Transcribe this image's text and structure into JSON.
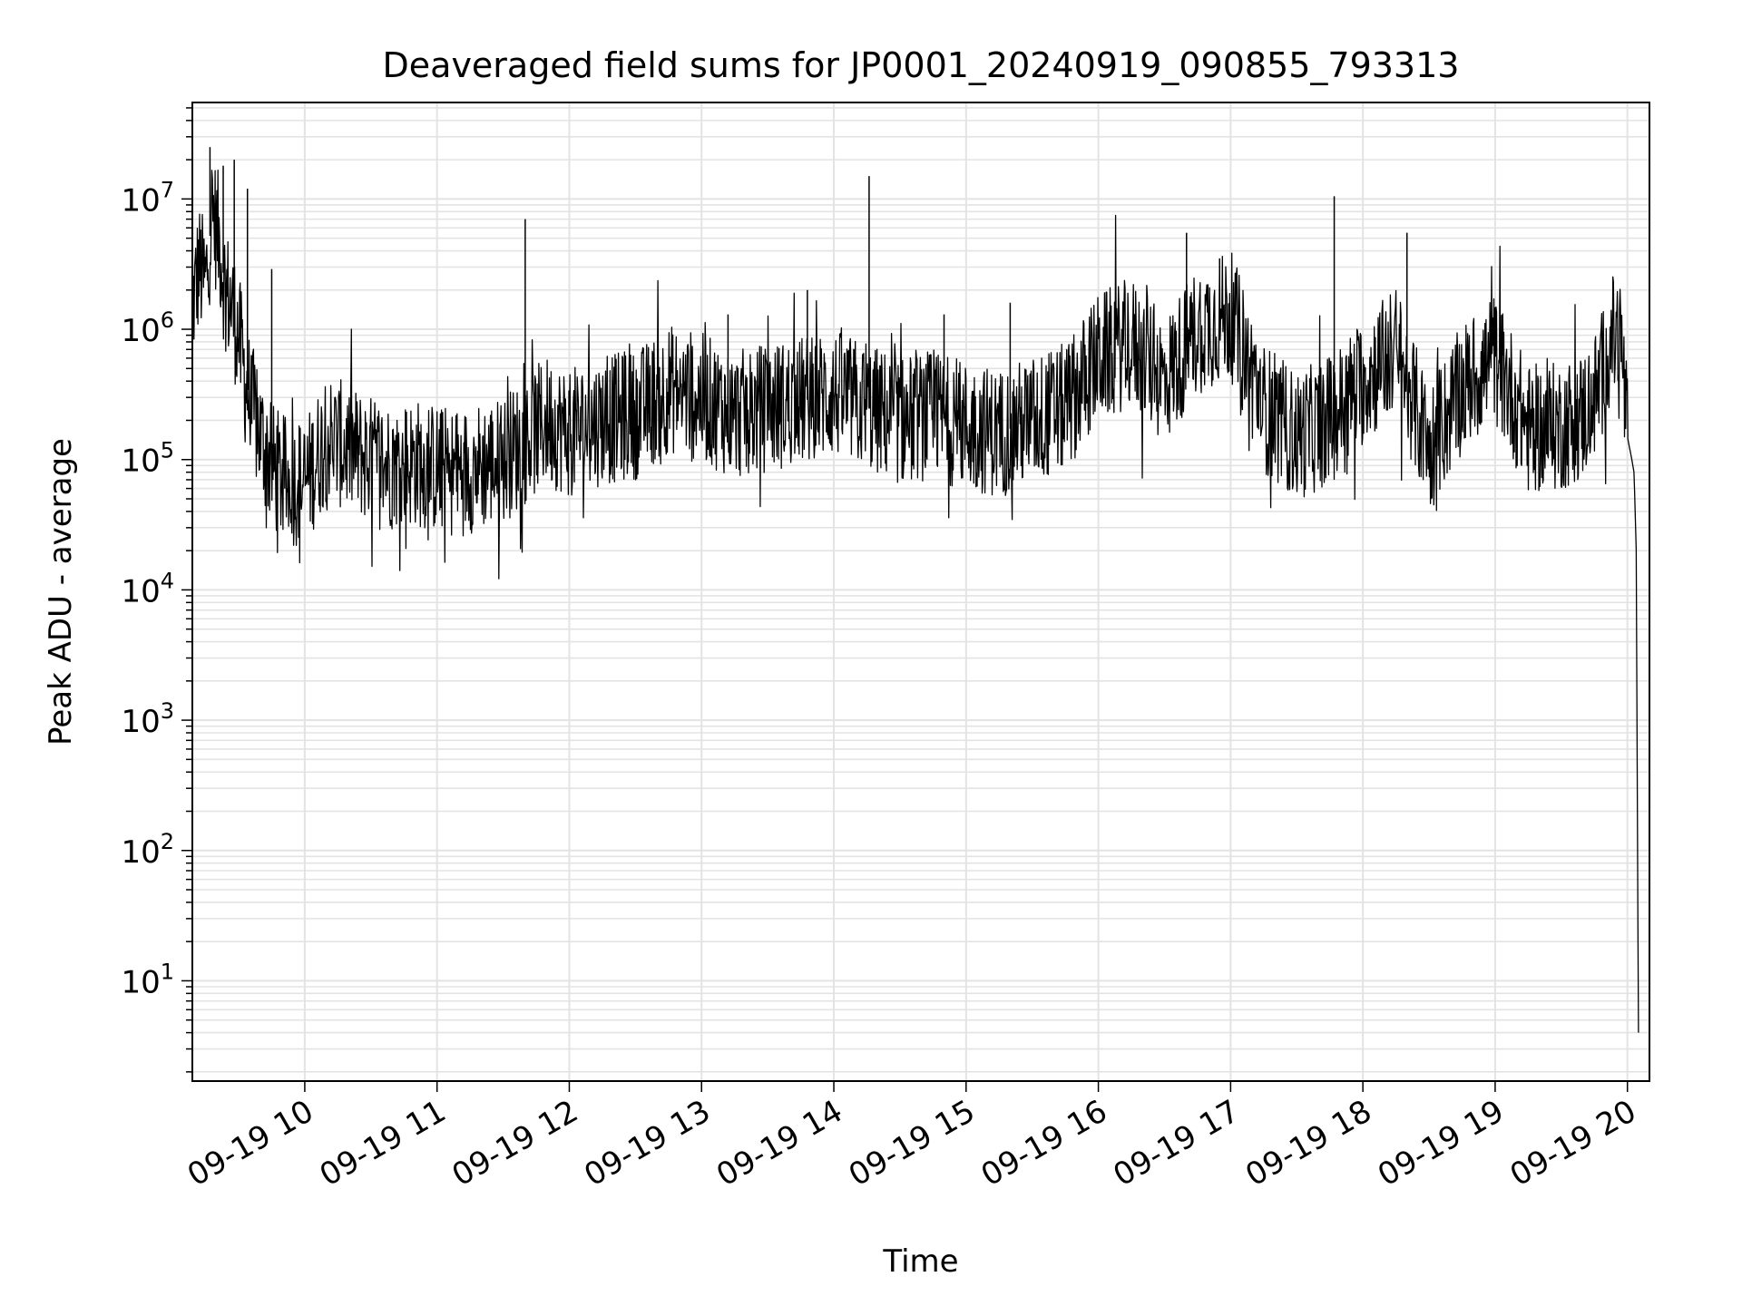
{
  "chart_data": {
    "type": "line",
    "title": "Deaveraged field sums for JP0001_20240919_090855_793313",
    "xlabel": "Time",
    "ylabel": "Peak ADU - average",
    "yscale": "log",
    "ylim": [
      1.7,
      55000000
    ],
    "xlim": [
      "09-19 09:09",
      "09-19 20:10"
    ],
    "grid": "on",
    "x_ticks": [
      "09-19 10",
      "09-19 11",
      "09-19 12",
      "09-19 13",
      "09-19 14",
      "09-19 15",
      "09-19 16",
      "09-19 17",
      "09-19 18",
      "09-19 19",
      "09-19 20"
    ],
    "y_ticks": [
      {
        "base": "10",
        "exp": "1",
        "value": 10
      },
      {
        "base": "10",
        "exp": "2",
        "value": 100
      },
      {
        "base": "10",
        "exp": "3",
        "value": 1000
      },
      {
        "base": "10",
        "exp": "4",
        "value": 10000
      },
      {
        "base": "10",
        "exp": "5",
        "value": 100000
      },
      {
        "base": "10",
        "exp": "6",
        "value": 1000000
      },
      {
        "base": "10",
        "exp": "7",
        "value": 10000000
      }
    ],
    "series": [
      {
        "color": "#000000",
        "x": [
          "09-19 09:09",
          "09-19 09:12",
          "09-19 09:15",
          "09-19 09:18",
          "09-19 09:21",
          "09-19 09:24",
          "09-19 09:27",
          "09-19 09:30",
          "09-19 09:33",
          "09-19 09:36",
          "09-19 09:40",
          "09-19 09:45",
          "09-19 09:50",
          "09-19 10:00",
          "09-19 10:10",
          "09-19 10:20",
          "09-19 10:30",
          "09-19 10:40",
          "09-19 10:50",
          "09-19 11:00",
          "09-19 11:10",
          "09-19 11:20",
          "09-19 11:30",
          "09-19 11:40",
          "09-19 11:50",
          "09-19 12:00",
          "09-19 12:15",
          "09-19 12:30",
          "09-19 12:45",
          "09-19 13:00",
          "09-19 13:15",
          "09-19 13:30",
          "09-19 13:45",
          "09-19 14:00",
          "09-19 14:15",
          "09-19 14:30",
          "09-19 14:45",
          "09-19 15:00",
          "09-19 15:15",
          "09-19 15:30",
          "09-19 15:45",
          "09-19 16:00",
          "09-19 16:15",
          "09-19 16:30",
          "09-19 16:45",
          "09-19 17:00",
          "09-19 17:15",
          "09-19 17:30",
          "09-19 17:45",
          "09-19 18:00",
          "09-19 18:15",
          "09-19 18:30",
          "09-19 18:45",
          "09-19 19:00",
          "09-19 19:15",
          "09-19 19:30",
          "09-19 19:40",
          "09-19 19:47",
          "09-19 19:52",
          "09-19 19:57",
          "09-19 20:00",
          "09-19 20:02",
          "09-19 20:03",
          "09-19 20:04",
          "09-19 20:05"
        ],
        "y": [
          1500000,
          3000000,
          2200000,
          8000000,
          5000000,
          2000000,
          1500000,
          900000,
          400000,
          250000,
          150000,
          90000,
          70000,
          65000,
          150000,
          120000,
          100000,
          90000,
          95000,
          85000,
          80000,
          90000,
          100000,
          140000,
          200000,
          160000,
          200000,
          220000,
          350000,
          300000,
          220000,
          250000,
          280000,
          320000,
          250000,
          200000,
          220000,
          180000,
          160000,
          200000,
          250000,
          600000,
          800000,
          400000,
          1000000,
          1300000,
          250000,
          150000,
          200000,
          400000,
          700000,
          120000,
          350000,
          600000,
          170000,
          180000,
          220000,
          350000,
          800000,
          900000,
          150000,
          100000,
          80000,
          20000,
          4
        ]
      }
    ],
    "spikes": [
      {
        "x": "09-19 09:17",
        "y": 25000000
      },
      {
        "x": "09-19 09:23",
        "y": 18000000
      },
      {
        "x": "09-19 09:28",
        "y": 20000000
      },
      {
        "x": "09-19 09:34",
        "y": 12000000
      },
      {
        "x": "09-19 09:45",
        "y": 2900000
      },
      {
        "x": "09-19 11:40",
        "y": 7000000
      },
      {
        "x": "09-19 13:12",
        "y": 1300000
      },
      {
        "x": "09-19 13:48",
        "y": 2000000
      },
      {
        "x": "09-19 14:16",
        "y": 15000000
      },
      {
        "x": "09-19 14:50",
        "y": 1300000
      },
      {
        "x": "09-19 15:20",
        "y": 1600000
      },
      {
        "x": "09-19 16:40",
        "y": 5500000
      },
      {
        "x": "09-19 16:55",
        "y": 3500000
      },
      {
        "x": "09-19 17:47",
        "y": 10500000
      },
      {
        "x": "09-19 18:20",
        "y": 5500000
      }
    ]
  }
}
